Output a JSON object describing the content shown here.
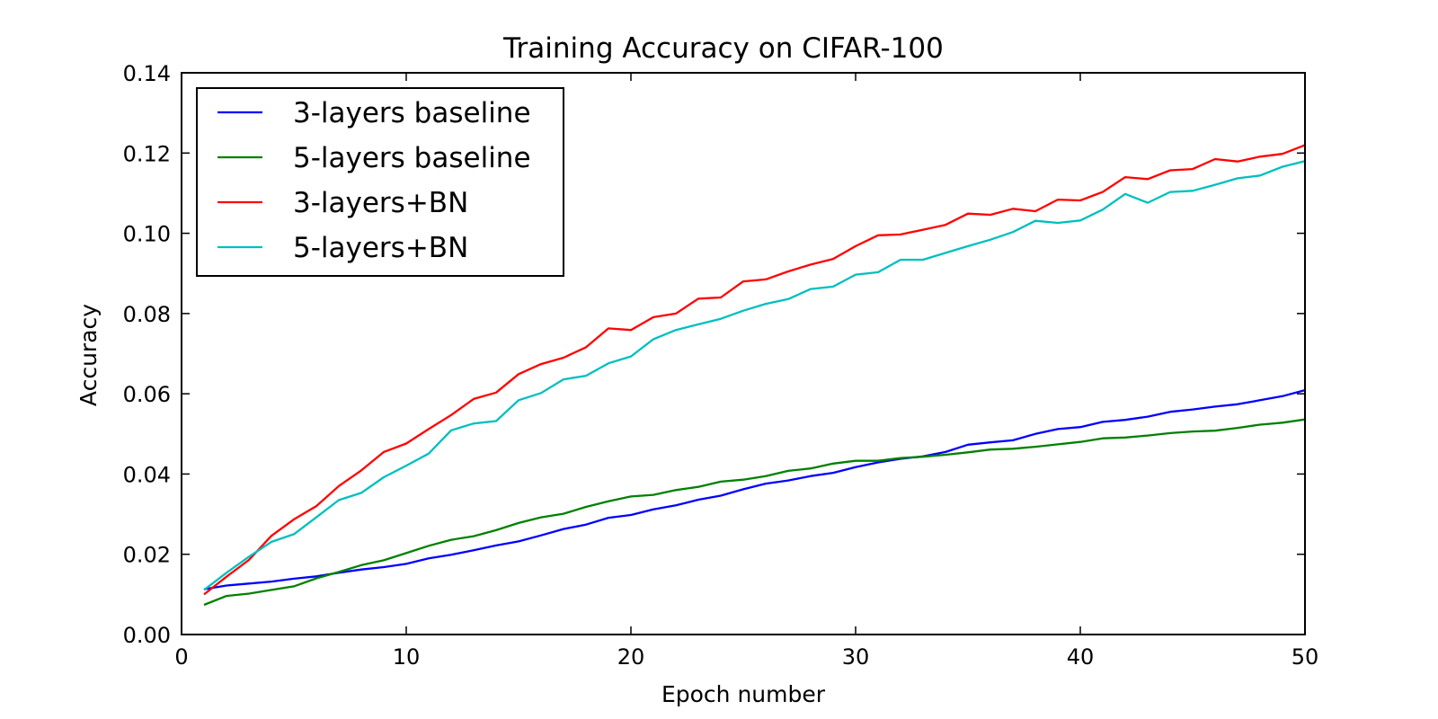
{
  "chart_data": {
    "type": "line",
    "title": "Training Accuracy on CIFAR-100",
    "xlabel": "Epoch number",
    "ylabel": "Accuracy",
    "xlim": [
      0,
      50
    ],
    "ylim": [
      0,
      0.14
    ],
    "xticks": [
      0,
      10,
      20,
      30,
      40,
      50
    ],
    "xtick_labels": [
      "0",
      "10",
      "20",
      "30",
      "40",
      "50"
    ],
    "yticks": [
      0,
      0.02,
      0.04,
      0.06,
      0.08,
      0.1,
      0.12,
      0.14
    ],
    "ytick_labels": [
      "0.00",
      "0.02",
      "0.04",
      "0.06",
      "0.08",
      "0.10",
      "0.12",
      "0.14"
    ],
    "grid": false,
    "legend_position": "top-left",
    "x": [
      1,
      2,
      3,
      4,
      5,
      6,
      7,
      8,
      9,
      10,
      11,
      12,
      13,
      14,
      15,
      16,
      17,
      18,
      19,
      20,
      21,
      22,
      23,
      24,
      25,
      26,
      27,
      28,
      29,
      30,
      31,
      32,
      33,
      34,
      35,
      36,
      37,
      38,
      39,
      40,
      41,
      42,
      43,
      44,
      45,
      46,
      47,
      48,
      49,
      50
    ],
    "series": [
      {
        "name": "3-layers baseline",
        "color": "#0000ff",
        "values": [
          0.0113,
          0.0122,
          0.0127,
          0.0132,
          0.0139,
          0.0145,
          0.0154,
          0.0162,
          0.0168,
          0.0176,
          0.019,
          0.0199,
          0.021,
          0.0222,
          0.0232,
          0.0247,
          0.0263,
          0.0274,
          0.0291,
          0.0298,
          0.0312,
          0.0322,
          0.0336,
          0.0346,
          0.0362,
          0.0376,
          0.0384,
          0.0395,
          0.0403,
          0.0417,
          0.0429,
          0.0438,
          0.0444,
          0.0455,
          0.0473,
          0.0479,
          0.0484,
          0.05,
          0.0512,
          0.0517,
          0.053,
          0.0535,
          0.0543,
          0.0555,
          0.0561,
          0.0568,
          0.0574,
          0.0584,
          0.0594,
          0.0609
        ]
      },
      {
        "name": "5-layers baseline",
        "color": "#008000",
        "values": [
          0.0074,
          0.0096,
          0.0102,
          0.0111,
          0.012,
          0.014,
          0.0156,
          0.0173,
          0.0185,
          0.0203,
          0.0221,
          0.0236,
          0.0245,
          0.026,
          0.0278,
          0.0292,
          0.0301,
          0.0318,
          0.0332,
          0.0344,
          0.0348,
          0.036,
          0.0368,
          0.0381,
          0.0386,
          0.0395,
          0.0408,
          0.0414,
          0.0426,
          0.0433,
          0.0433,
          0.044,
          0.0443,
          0.0448,
          0.0454,
          0.0461,
          0.0463,
          0.0468,
          0.0474,
          0.048,
          0.0489,
          0.0491,
          0.0496,
          0.0502,
          0.0506,
          0.0508,
          0.0515,
          0.0523,
          0.0528,
          0.0536
        ]
      },
      {
        "name": "3-layers+BN",
        "color": "#ff0000",
        "values": [
          0.01,
          0.0144,
          0.0186,
          0.0246,
          0.0287,
          0.032,
          0.037,
          0.0409,
          0.0455,
          0.0476,
          0.0512,
          0.0547,
          0.0587,
          0.0603,
          0.0649,
          0.0674,
          0.069,
          0.0716,
          0.0763,
          0.0759,
          0.0791,
          0.08,
          0.0837,
          0.084,
          0.088,
          0.0885,
          0.0905,
          0.0922,
          0.0936,
          0.0968,
          0.0995,
          0.0997,
          0.1009,
          0.1021,
          0.1049,
          0.1046,
          0.1061,
          0.1055,
          0.1084,
          0.1082,
          0.1103,
          0.114,
          0.1135,
          0.1157,
          0.116,
          0.1185,
          0.1179,
          0.1191,
          0.1198,
          0.122
        ]
      },
      {
        "name": "5-layers+BN",
        "color": "#00bfbf",
        "values": [
          0.0111,
          0.0154,
          0.0194,
          0.0231,
          0.025,
          0.0292,
          0.0335,
          0.0353,
          0.0392,
          0.0421,
          0.0451,
          0.0509,
          0.0526,
          0.0532,
          0.0584,
          0.0602,
          0.0636,
          0.0645,
          0.0676,
          0.0693,
          0.0736,
          0.0759,
          0.0773,
          0.0787,
          0.0807,
          0.0824,
          0.0836,
          0.0861,
          0.0867,
          0.0897,
          0.0903,
          0.0934,
          0.0934,
          0.0951,
          0.0968,
          0.0984,
          0.1003,
          0.1031,
          0.1026,
          0.1032,
          0.1059,
          0.1098,
          0.1076,
          0.1103,
          0.1106,
          0.1121,
          0.1137,
          0.1144,
          0.1166,
          0.118
        ]
      }
    ]
  }
}
